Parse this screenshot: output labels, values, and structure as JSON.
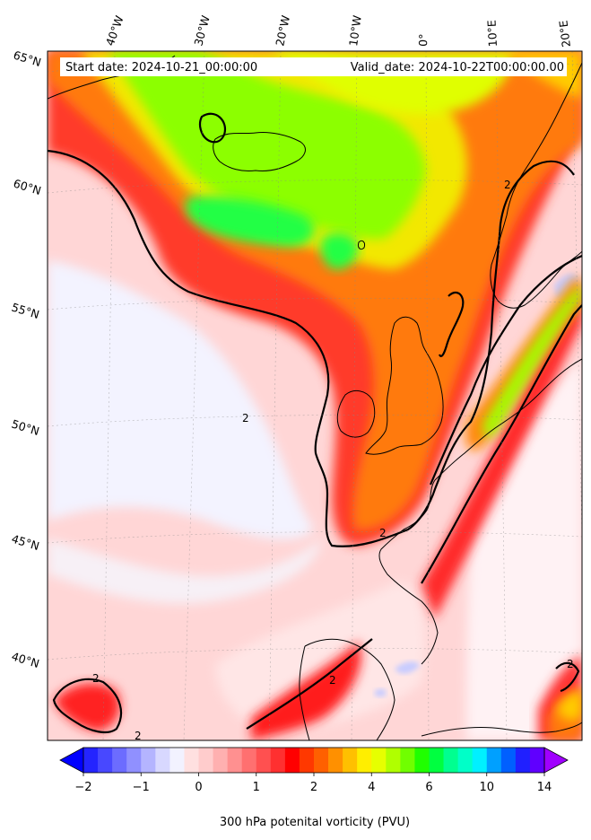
{
  "map": {
    "start_date": "Start date: 2024-10-21_00:00:00",
    "valid_date": "Valid_date: 2024-10-22T00:00:00.00",
    "lon_labels": [
      "40°W",
      "30°W",
      "20°W",
      "10°W",
      "0°",
      "10°E",
      "20°E"
    ],
    "lat_labels": [
      "65°N",
      "60°N",
      "55°N",
      "50°N",
      "45°N",
      "40°N"
    ],
    "contour_level_label": "2"
  },
  "colorbar": {
    "title": "300 hPa potenital vorticity (PVU)",
    "tick_labels": [
      "−2",
      "−1",
      "0",
      "1",
      "2",
      "4",
      "6",
      "10",
      "14"
    ],
    "colors": [
      "#0000ff",
      "#2424ff",
      "#4848ff",
      "#6c6cff",
      "#9090ff",
      "#b4b4ff",
      "#d8d8ff",
      "#f2f2ff",
      "#ffe0e0",
      "#ffcccc",
      "#ffb0b0",
      "#ff9090",
      "#ff7070",
      "#ff5050",
      "#ff3030",
      "#ff0000",
      "#ff3800",
      "#ff6000",
      "#ff9000",
      "#ffc000",
      "#ffee00",
      "#e6ff00",
      "#b0ff00",
      "#70ff00",
      "#20ff00",
      "#00ff40",
      "#00ff90",
      "#00ffc8",
      "#00f0ff",
      "#00a0ff",
      "#0060ff",
      "#2020ff",
      "#6000ff",
      "#a000ff"
    ]
  }
}
